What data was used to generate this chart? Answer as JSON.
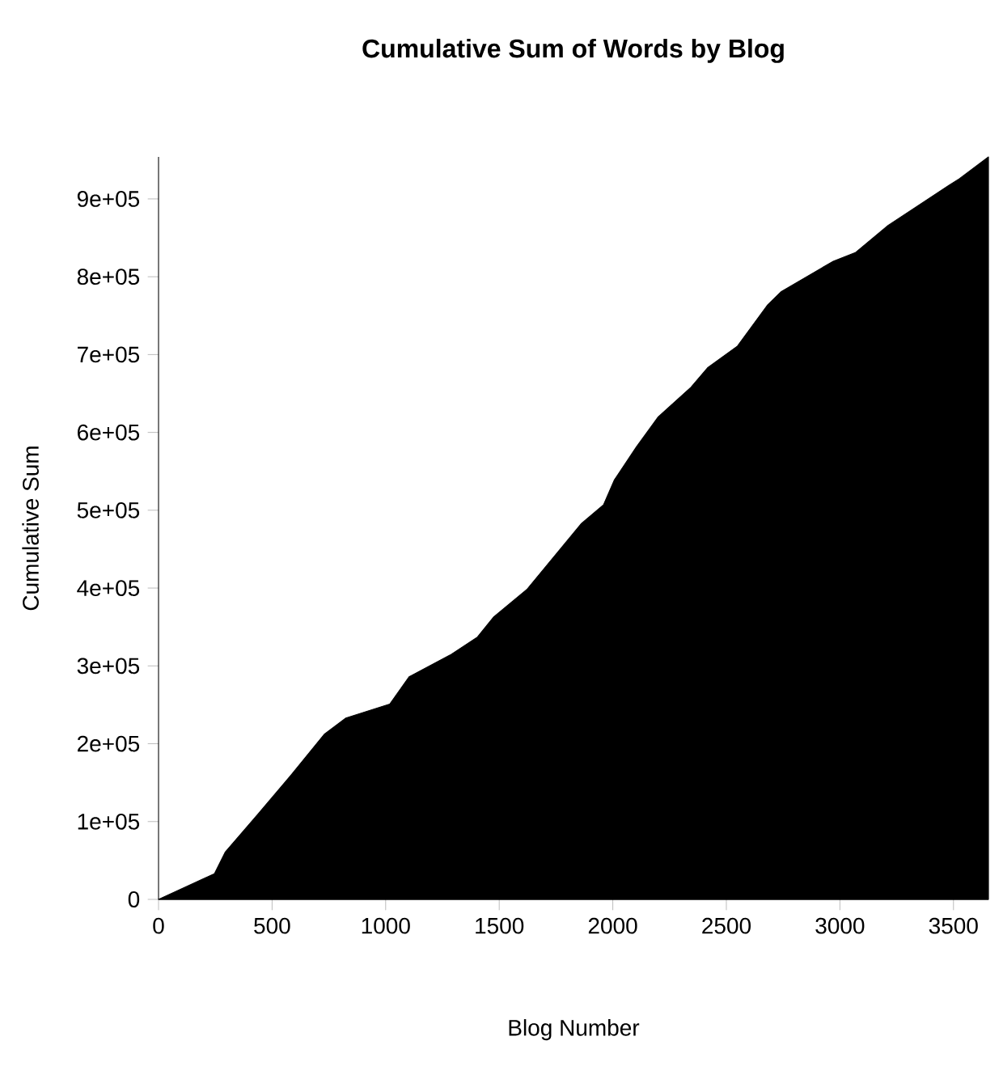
{
  "chart_data": {
    "type": "area",
    "title": "Cumulative Sum of Words by Blog",
    "xlabel": "Blog Number",
    "ylabel": "Cumulative Sum",
    "color": "#000000",
    "x": [
      0,
      246,
      294,
      439,
      584,
      729,
      825,
      1018,
      1103,
      1284,
      1404,
      1476,
      1621,
      1862,
      1959,
      2007,
      2103,
      2200,
      2344,
      2417,
      2549,
      2682,
      2742,
      2971,
      3068,
      3212,
      3478,
      3526,
      3654
    ],
    "values": [
      0,
      33000,
      61000,
      110000,
      160000,
      212000,
      233000,
      251000,
      286000,
      314000,
      337000,
      363000,
      398000,
      483000,
      507000,
      539000,
      581000,
      620000,
      658000,
      683000,
      711000,
      764000,
      781000,
      820000,
      831000,
      866000,
      917000,
      926000,
      954000
    ],
    "xlim": [
      0,
      3654
    ],
    "ylim": [
      0,
      954000
    ],
    "xticks": [
      0,
      500,
      1000,
      1500,
      2000,
      2500,
      3000,
      3500
    ],
    "yticks": [
      0,
      {
        "value": 100000,
        "label": "1e+05"
      },
      {
        "value": 200000,
        "label": "2e+05"
      },
      {
        "value": 300000,
        "label": "3e+05"
      },
      {
        "value": 400000,
        "label": "4e+05"
      },
      {
        "value": 500000,
        "label": "5e+05"
      },
      {
        "value": 600000,
        "label": "6e+05"
      },
      {
        "value": 700000,
        "label": "7e+05"
      },
      {
        "value": 800000,
        "label": "8e+05"
      },
      {
        "value": 900000,
        "label": "9e+05"
      }
    ]
  }
}
